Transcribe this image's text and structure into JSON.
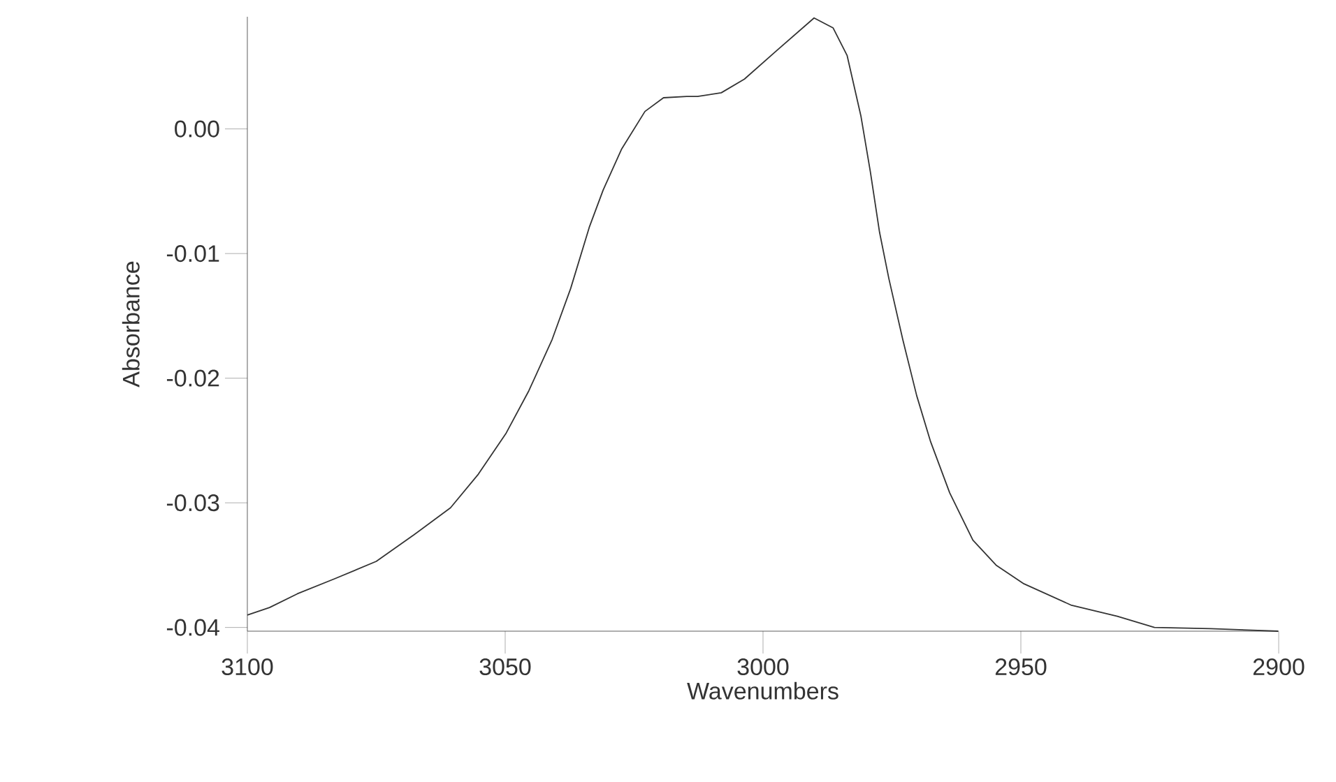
{
  "chart_data": {
    "type": "line",
    "xlabel": "Wavenumbers",
    "ylabel": "Absorbance",
    "color": "#333333",
    "x": [
      3100,
      3095.7,
      3090.3,
      3083.1,
      3075.0,
      3067.8,
      3060.6,
      3055.2,
      3049.8,
      3045.4,
      3040.9,
      3037.3,
      3033.7,
      3031.0,
      3027.4,
      3022.9,
      3019.3,
      3014.8,
      3012.7,
      3008.1,
      3003.6,
      2997.3,
      2990.1,
      2986.4,
      2983.7,
      2981.0,
      2979.2,
      2977.4,
      2975.6,
      2972.9,
      2970.2,
      2967.5,
      2963.8,
      2959.3,
      2954.8,
      2949.4,
      2940.3,
      2931.3,
      2924.1,
      2913.2,
      2900.1
    ],
    "values": [
      -0.039,
      -0.0384,
      -0.0373,
      -0.0361,
      -0.0347,
      -0.0326,
      -0.0304,
      -0.0277,
      -0.0244,
      -0.021,
      -0.0169,
      -0.0128,
      -0.0079,
      -0.0049,
      -0.0016,
      0.0014,
      0.0025,
      0.0026,
      0.0026,
      0.0029,
      0.004,
      0.0063,
      0.0089,
      0.0081,
      0.0059,
      0.001,
      -0.0034,
      -0.0083,
      -0.012,
      -0.0169,
      -0.0214,
      -0.0251,
      -0.0292,
      -0.033,
      -0.035,
      -0.0365,
      -0.0382,
      -0.0391,
      -0.04,
      -0.0401,
      -0.0403
    ],
    "xlim": [
      3100,
      2900
    ],
    "ylim": [
      -0.0403,
      0.009
    ],
    "xticks": [
      3100,
      3050,
      3000,
      2950,
      2900
    ],
    "yticks": [
      {
        "value": 0,
        "label": "0.00"
      },
      {
        "value": -0.01,
        "label": "-0.01"
      },
      {
        "value": -0.02,
        "label": "-0.02"
      },
      {
        "value": -0.03,
        "label": "-0.03"
      },
      {
        "value": -0.04,
        "label": "-0.04"
      }
    ],
    "grid": false,
    "marker": "none",
    "line_style": "solid"
  }
}
